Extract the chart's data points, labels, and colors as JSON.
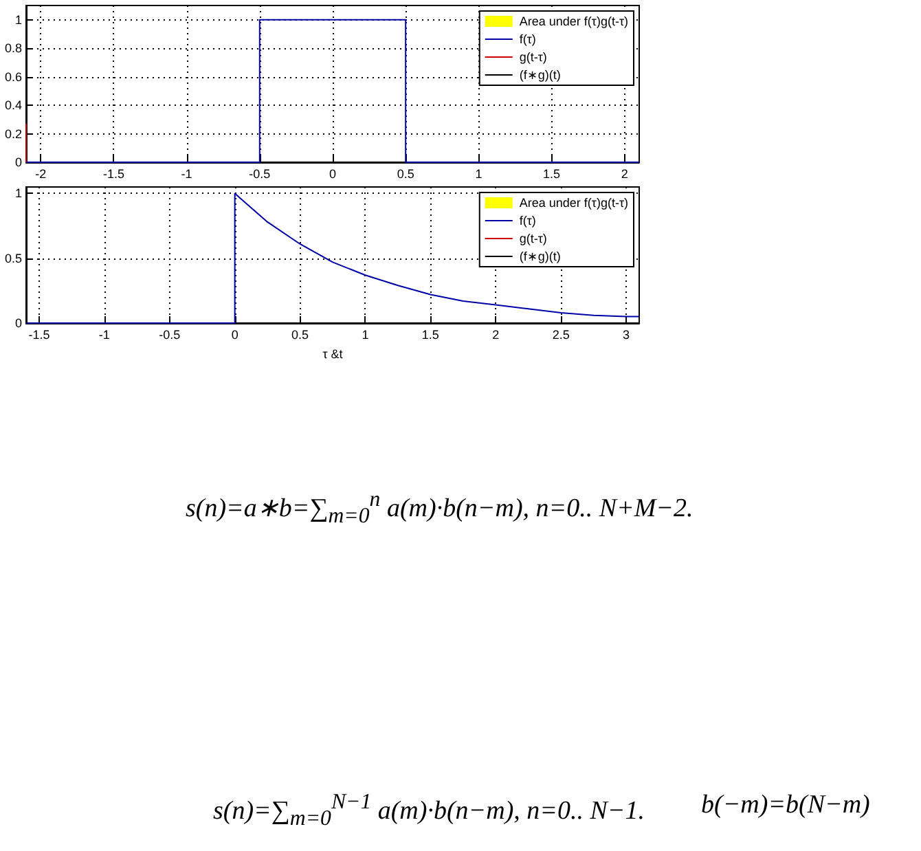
{
  "chart_data": [
    {
      "type": "line",
      "xlim": [
        -2.1,
        2.1
      ],
      "xticks": [
        -2,
        -1.5,
        -1,
        -0.5,
        0,
        0.5,
        1,
        1.5,
        2
      ],
      "ylim": [
        0,
        1.1
      ],
      "yticks": [
        0,
        0.2,
        0.4,
        0.6,
        0.8,
        1
      ],
      "grid": true,
      "legend": "top right",
      "series": [
        {
          "name": "Area under f(τ)g(t-τ)",
          "type": "area",
          "color": "#ffff00"
        },
        {
          "name": "f(τ)",
          "color": "#0000aa",
          "x": [
            -2.1,
            -0.5,
            -0.5,
            0.5,
            0.5,
            2.1
          ],
          "values": [
            0,
            0,
            1,
            1,
            0,
            0
          ]
        },
        {
          "name": "g(t-τ)",
          "color": "#cc0000",
          "x": [
            -2.1,
            -2.1
          ],
          "values": [
            0,
            0.27
          ]
        },
        {
          "name": "(f∗g)(t)",
          "color": "#000000"
        }
      ]
    },
    {
      "type": "line",
      "xlabel": "τ &t",
      "xlim": [
        -1.6,
        3.1
      ],
      "xticks": [
        -1.5,
        -1,
        -0.5,
        0,
        0.5,
        1,
        1.5,
        2,
        2.5,
        3
      ],
      "ylim": [
        0,
        1.05
      ],
      "yticks": [
        0,
        0.5,
        1
      ],
      "grid": true,
      "legend": "top right",
      "series": [
        {
          "name": "Area under f(τ)g(t-τ)",
          "type": "area",
          "color": "#ffff00"
        },
        {
          "name": "f(τ)",
          "color": "#0000aa",
          "x": [
            -1.6,
            0,
            0,
            0.25,
            0.5,
            0.75,
            1,
            1.25,
            1.5,
            1.75,
            2,
            2.25,
            2.5,
            2.75,
            3,
            3.1
          ],
          "values": [
            0,
            0,
            1,
            0.78,
            0.61,
            0.47,
            0.37,
            0.29,
            0.22,
            0.17,
            0.14,
            0.11,
            0.08,
            0.06,
            0.05,
            0.05
          ]
        },
        {
          "name": "g(t-τ)",
          "color": "#cc0000"
        },
        {
          "name": "(f∗g)(t)",
          "color": "#000000"
        }
      ],
      "annotations": [
        "s(n)=a∗b=∑$_{m=0}$$^{n}$ a(m)·b(n−m),    n=0.. N+M−2.",
        "s(n)=∑$_{m=0}$$^{N−1}$ a(m)·b(n−m),  n=0.. N−1.",
        "b(−m)=b(N−m)"
      ]
    }
  ]
}
